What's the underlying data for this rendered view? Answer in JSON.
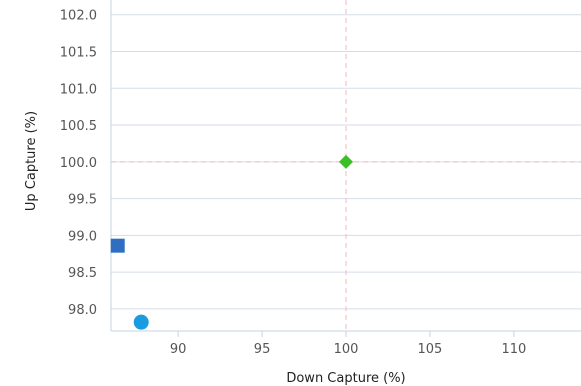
{
  "chart_data": {
    "type": "scatter",
    "xlabel": "Down Capture (%)",
    "ylabel": "Up Capture (%)",
    "xlim": [
      86.0,
      114.0
    ],
    "ylim": [
      97.7,
      102.2
    ],
    "x_ticks": [
      "90",
      "95",
      "100",
      "105",
      "110"
    ],
    "y_ticks": [
      "98.0",
      "98.5",
      "99.0",
      "99.5",
      "100.0",
      "100.5",
      "101.0",
      "101.5",
      "102.0"
    ],
    "grid": true,
    "reference_lines": {
      "x": 100,
      "y": 100,
      "color": "#f2b8c0",
      "style": "dashed"
    },
    "series": [
      {
        "marker": "square",
        "color": "#2f6ec1",
        "points": [
          {
            "x": 86.4,
            "y": 98.86
          }
        ]
      },
      {
        "marker": "circle",
        "color": "#1a9de0",
        "points": [
          {
            "x": 87.8,
            "y": 97.82
          }
        ]
      },
      {
        "marker": "diamond",
        "color": "#3cbf26",
        "points": [
          {
            "x": 100.0,
            "y": 100.0
          }
        ]
      }
    ],
    "colors": {
      "grid": "#d4dde8",
      "axis": "#c5d3e6",
      "tick_text": "#555555",
      "title_text": "#222222"
    }
  }
}
